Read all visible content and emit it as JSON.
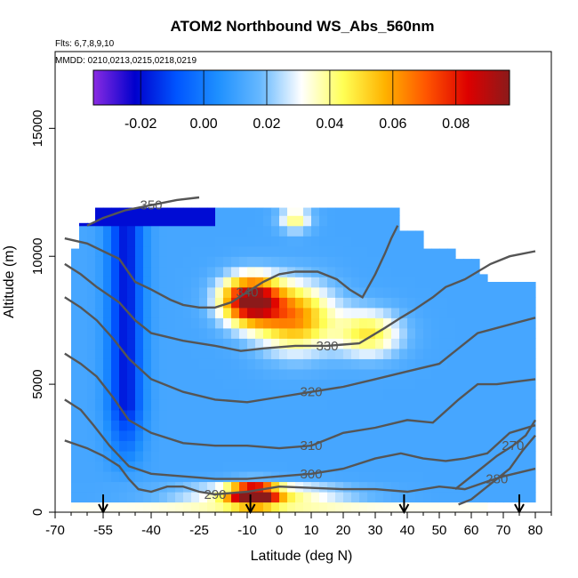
{
  "chart_data": {
    "type": "heatmap",
    "title": "ATOM2 Northbound WS_Abs_560nm",
    "subtitle_flights": "Flts: 6,7,8,9,10",
    "subtitle_dates": "MMDD: 0210,0213,0215,0218,0219",
    "xlabel": "Latitude (deg N)",
    "ylabel": "Altitude (m)",
    "xlim": [
      -70,
      85
    ],
    "ylim": [
      0,
      18000
    ],
    "x_ticks": [
      -70,
      -55,
      -40,
      -25,
      -10,
      0,
      10,
      20,
      30,
      40,
      50,
      60,
      70,
      80
    ],
    "x_tick_labels": [
      "-70",
      "-55",
      "-40",
      "-25",
      "-10",
      "0",
      "10",
      "20",
      "30",
      "40",
      "50",
      "60",
      "70",
      "80"
    ],
    "y_ticks": [
      0,
      5000,
      10000,
      15000
    ],
    "y_tick_labels": [
      "0",
      "5000",
      "10000",
      "15000"
    ],
    "colorbar": {
      "range": [
        -0.035,
        0.097
      ],
      "ticks": [
        -0.02,
        0.0,
        0.02,
        0.04,
        0.06,
        0.08
      ],
      "tick_labels": [
        "-0.02",
        "0.00",
        "0.02",
        "0.04",
        "0.06",
        "0.08"
      ],
      "colors": [
        "#8a2be2",
        "#0000cd",
        "#0055ff",
        "#1e90ff",
        "#66b8ff",
        "#ffffff",
        "#ffff55",
        "#ffb300",
        "#ff5500",
        "#dd0000",
        "#8b1a1a"
      ]
    },
    "theta_contours": [
      {
        "label": "270",
        "points": [
          [
            55,
            900
          ],
          [
            62,
            1600
          ],
          [
            68,
            2200
          ],
          [
            73,
            2600
          ],
          [
            77,
            3000
          ],
          [
            80,
            3600
          ]
        ]
      },
      {
        "label": "280",
        "points": [
          [
            56,
            300
          ],
          [
            60,
            500
          ],
          [
            64,
            900
          ],
          [
            68,
            1300
          ],
          [
            72,
            1700
          ],
          [
            76,
            2400
          ],
          [
            80,
            3000
          ]
        ]
      },
      {
        "label": "290",
        "points": [
          [
            -67,
            2800
          ],
          [
            -60,
            2500
          ],
          [
            -55,
            2200
          ],
          [
            -50,
            1800
          ],
          [
            -47,
            1300
          ],
          [
            -44,
            900
          ],
          [
            -40,
            800
          ],
          [
            -35,
            1000
          ],
          [
            -30,
            1000
          ],
          [
            -25,
            800
          ],
          [
            -20,
            700
          ],
          [
            -10,
            800
          ],
          [
            0,
            1000
          ],
          [
            20,
            900
          ],
          [
            30,
            900
          ],
          [
            40,
            800
          ],
          [
            50,
            1000
          ],
          [
            58,
            900
          ],
          [
            65,
            1200
          ],
          [
            70,
            1400
          ],
          [
            80,
            1700
          ]
        ]
      },
      {
        "label": "300",
        "points": [
          [
            -67,
            4400
          ],
          [
            -62,
            4000
          ],
          [
            -58,
            3400
          ],
          [
            -53,
            2600
          ],
          [
            -47,
            1800
          ],
          [
            -40,
            1500
          ],
          [
            -30,
            1400
          ],
          [
            -20,
            1300
          ],
          [
            -10,
            1300
          ],
          [
            0,
            1400
          ],
          [
            10,
            1500
          ],
          [
            20,
            1700
          ],
          [
            30,
            2100
          ],
          [
            38,
            2300
          ],
          [
            45,
            2100
          ],
          [
            52,
            2000
          ],
          [
            58,
            2100
          ],
          [
            65,
            2300
          ],
          [
            72,
            3100
          ],
          [
            80,
            3400
          ]
        ]
      },
      {
        "label": "310",
        "points": [
          [
            -67,
            6200
          ],
          [
            -62,
            5800
          ],
          [
            -57,
            5300
          ],
          [
            -52,
            4500
          ],
          [
            -47,
            3600
          ],
          [
            -40,
            3100
          ],
          [
            -30,
            2700
          ],
          [
            -20,
            2600
          ],
          [
            -10,
            2600
          ],
          [
            0,
            2500
          ],
          [
            10,
            2600
          ],
          [
            20,
            3100
          ],
          [
            30,
            3300
          ],
          [
            40,
            3600
          ],
          [
            48,
            3500
          ],
          [
            56,
            4400
          ],
          [
            62,
            5000
          ],
          [
            68,
            5000
          ],
          [
            74,
            5100
          ],
          [
            80,
            5200
          ]
        ]
      },
      {
        "label": "320",
        "points": [
          [
            -67,
            8400
          ],
          [
            -62,
            8000
          ],
          [
            -57,
            7500
          ],
          [
            -52,
            6800
          ],
          [
            -47,
            6000
          ],
          [
            -40,
            5200
          ],
          [
            -30,
            4700
          ],
          [
            -20,
            4400
          ],
          [
            -10,
            4300
          ],
          [
            0,
            4500
          ],
          [
            10,
            4700
          ],
          [
            20,
            4900
          ],
          [
            30,
            5200
          ],
          [
            40,
            5500
          ],
          [
            50,
            5800
          ],
          [
            56,
            6400
          ],
          [
            62,
            7000
          ],
          [
            68,
            7200
          ],
          [
            74,
            7400
          ],
          [
            80,
            7600
          ]
        ]
      },
      {
        "label": "330",
        "points": [
          [
            -67,
            9700
          ],
          [
            -62,
            9300
          ],
          [
            -57,
            8800
          ],
          [
            -50,
            8200
          ],
          [
            -45,
            7500
          ],
          [
            -40,
            7000
          ],
          [
            -30,
            6700
          ],
          [
            -20,
            6500
          ],
          [
            -12,
            6300
          ],
          [
            -5,
            6400
          ],
          [
            5,
            6500
          ],
          [
            15,
            6500
          ],
          [
            25,
            6600
          ],
          [
            33,
            7200
          ],
          [
            38,
            7600
          ],
          [
            42,
            7900
          ],
          [
            48,
            8400
          ],
          [
            52,
            8800
          ],
          [
            58,
            9100
          ],
          [
            66,
            9700
          ],
          [
            72,
            10000
          ],
          [
            80,
            10200
          ]
        ]
      },
      {
        "label": "340",
        "points": [
          [
            -67,
            10700
          ],
          [
            -60,
            10500
          ],
          [
            -55,
            10200
          ],
          [
            -50,
            9900
          ],
          [
            -45,
            9000
          ],
          [
            -40,
            8700
          ],
          [
            -34,
            8300
          ],
          [
            -30,
            8100
          ],
          [
            -25,
            8000
          ],
          [
            -20,
            8000
          ],
          [
            -15,
            8200
          ],
          [
            -10,
            8600
          ],
          [
            -5,
            9000
          ],
          [
            0,
            9300
          ],
          [
            5,
            9400
          ],
          [
            12,
            9400
          ],
          [
            18,
            9100
          ],
          [
            22,
            8700
          ],
          [
            26,
            8400
          ],
          [
            30,
            9300
          ],
          [
            33,
            10100
          ],
          [
            35,
            10700
          ],
          [
            37,
            11200
          ]
        ]
      },
      {
        "label": "350",
        "points": [
          [
            -60,
            11200
          ],
          [
            -55,
            11500
          ],
          [
            -48,
            11800
          ],
          [
            -40,
            12000
          ],
          [
            -32,
            12200
          ],
          [
            -25,
            12300
          ]
        ]
      }
    ],
    "flight_markers_lat": [
      -55,
      -9,
      39,
      75
    ]
  }
}
